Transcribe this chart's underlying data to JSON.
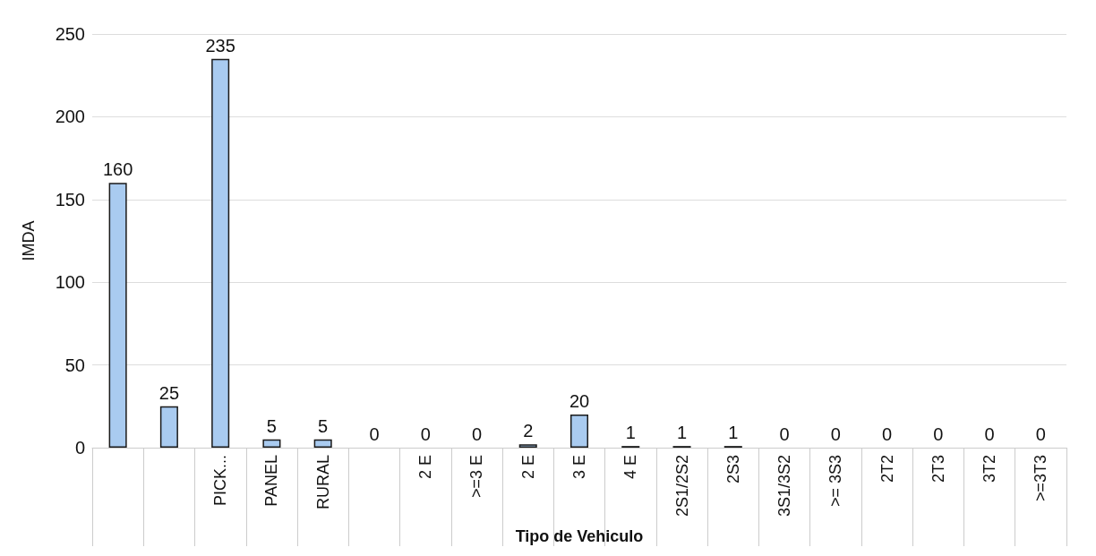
{
  "chart_data": {
    "type": "bar",
    "xlabel": "Tipo de Vehiculo",
    "ylabel": "IMDA",
    "categories": [
      null,
      null,
      "PICK...",
      "PANEL",
      "RURAL",
      null,
      "2 E",
      ">=3 E",
      "2 E",
      "3 E",
      "4 E",
      "2S1/2S2",
      "2S3",
      "3S1/3S2",
      ">= 3S3",
      "2T2",
      "2T3",
      "3T2",
      ">=3T3"
    ],
    "values": [
      160,
      25,
      235,
      5,
      5,
      0,
      0,
      0,
      2,
      20,
      1,
      1,
      1,
      0,
      0,
      0,
      0,
      0,
      0
    ],
    "color": "#a9cbf0",
    "ylim": [
      0,
      250
    ],
    "yticks": [
      0,
      50,
      100,
      150,
      200,
      250
    ],
    "grid": "y",
    "data_labels": true
  }
}
